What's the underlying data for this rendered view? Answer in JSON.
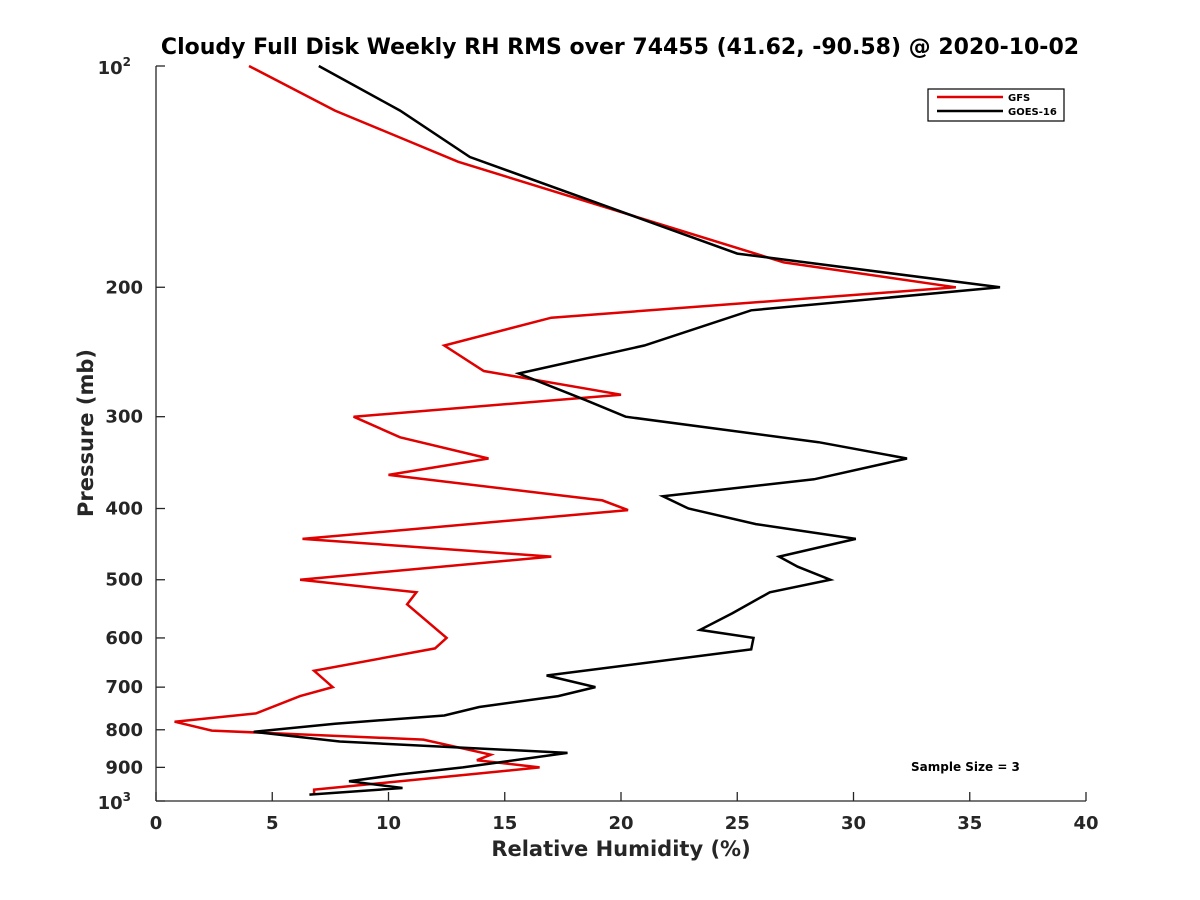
{
  "chart_data": {
    "type": "line",
    "title": "Cloudy Full Disk Weekly RH RMS over 74455 (41.62, -90.58) @ 2020-10-02",
    "xlabel": "Relative Humidity (%)",
    "ylabel": "Pressure (mb)",
    "xlim": [
      0,
      40
    ],
    "ylim": [
      100,
      1000
    ],
    "y_scale": "log",
    "y_reversed": true,
    "x_ticks": [
      "0",
      "5",
      "10",
      "15",
      "20",
      "25",
      "30",
      "35",
      "40"
    ],
    "y_ticks": [
      {
        "value": 100,
        "base": "10",
        "exp": "2"
      },
      {
        "value": 200,
        "label": "200"
      },
      {
        "value": 300,
        "label": "300"
      },
      {
        "value": 400,
        "label": "400"
      },
      {
        "value": 500,
        "label": "500"
      },
      {
        "value": 600,
        "label": "600"
      },
      {
        "value": 700,
        "label": "700"
      },
      {
        "value": 800,
        "label": "800"
      },
      {
        "value": 900,
        "label": "900"
      },
      {
        "value": 1000,
        "base": "10",
        "exp": "3"
      }
    ],
    "grid": false,
    "legend_position": "top-right",
    "annotation": "Sample Size = 3",
    "series": [
      {
        "name": "GFS",
        "color": "#e00000",
        "points": [
          [
            4.0,
            100
          ],
          [
            7.7,
            115
          ],
          [
            13.0,
            135
          ],
          [
            27.0,
            185
          ],
          [
            34.4,
            200
          ],
          [
            17.0,
            220
          ],
          [
            12.4,
            240
          ],
          [
            14.1,
            260
          ],
          [
            20.0,
            280
          ],
          [
            8.5,
            300
          ],
          [
            10.5,
            320
          ],
          [
            14.3,
            342
          ],
          [
            10.0,
            360
          ],
          [
            19.2,
            390
          ],
          [
            20.3,
            402
          ],
          [
            6.3,
            440
          ],
          [
            17.0,
            465
          ],
          [
            6.2,
            500
          ],
          [
            11.2,
            520
          ],
          [
            10.8,
            540
          ],
          [
            12.5,
            600
          ],
          [
            12.0,
            620
          ],
          [
            6.8,
            665
          ],
          [
            7.6,
            700
          ],
          [
            6.2,
            720
          ],
          [
            4.3,
            760
          ],
          [
            0.8,
            780
          ],
          [
            2.4,
            802
          ],
          [
            11.5,
            825
          ],
          [
            14.4,
            865
          ],
          [
            13.8,
            880
          ],
          [
            16.5,
            900
          ],
          [
            13.5,
            920
          ],
          [
            6.8,
            965
          ],
          [
            6.8,
            980
          ]
        ]
      },
      {
        "name": "GOES-16",
        "color": "#000000",
        "points": [
          [
            7.0,
            100
          ],
          [
            10.5,
            115
          ],
          [
            13.5,
            133
          ],
          [
            25.0,
            180
          ],
          [
            36.3,
            200
          ],
          [
            25.6,
            215
          ],
          [
            21.0,
            240
          ],
          [
            15.6,
            262
          ],
          [
            18.5,
            285
          ],
          [
            20.2,
            300
          ],
          [
            28.5,
            325
          ],
          [
            32.3,
            342
          ],
          [
            28.3,
            365
          ],
          [
            21.8,
            385
          ],
          [
            22.9,
            400
          ],
          [
            25.8,
            420
          ],
          [
            30.1,
            440
          ],
          [
            26.8,
            465
          ],
          [
            27.6,
            480
          ],
          [
            29.0,
            500
          ],
          [
            26.4,
            520
          ],
          [
            24.8,
            555
          ],
          [
            23.4,
            585
          ],
          [
            25.7,
            600
          ],
          [
            25.6,
            622
          ],
          [
            16.8,
            675
          ],
          [
            18.9,
            700
          ],
          [
            17.3,
            720
          ],
          [
            13.9,
            745
          ],
          [
            12.4,
            765
          ],
          [
            7.7,
            785
          ],
          [
            4.2,
            805
          ],
          [
            7.9,
            830
          ],
          [
            17.7,
            860
          ],
          [
            13.2,
            900
          ],
          [
            10.5,
            920
          ],
          [
            8.3,
            940
          ],
          [
            10.6,
            960
          ],
          [
            6.6,
            980
          ]
        ]
      }
    ]
  }
}
